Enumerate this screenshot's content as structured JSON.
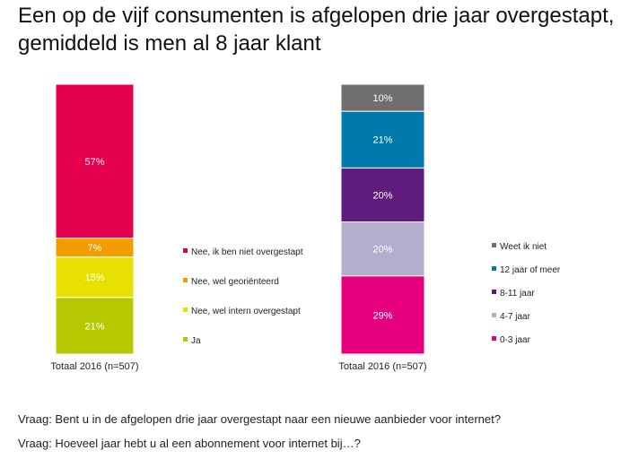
{
  "title": "Een op de vijf consumenten is afgelopen drie jaar overgestapt, gemiddeld is men al 8 jaar klant",
  "questions": [
    "Vraag: Bent u in de afgelopen drie jaar overgestapt naar een nieuwe aanbieder voor internet?",
    "Vraag: Hoeveel jaar hebt u al een abonnement voor internet bij…?"
  ],
  "chart_data": [
    {
      "type": "bar",
      "stacked": true,
      "categories": [
        "Totaal 2016 (n=507)"
      ],
      "series": [
        {
          "name": "Ja",
          "values": [
            21
          ],
          "label": "21%",
          "color": "#b5c800"
        },
        {
          "name": "Nee, wel intern overgestapt",
          "values": [
            15
          ],
          "label": "15%",
          "color": "#e8e000"
        },
        {
          "name": "Nee, wel georiënteerd",
          "values": [
            7
          ],
          "label": "7%",
          "color": "#f39c00"
        },
        {
          "name": "Nee, ik ben niet overgestapt",
          "values": [
            57
          ],
          "label": "57%",
          "color": "#e4004f"
        }
      ],
      "legend_order": [
        "Nee, ik ben niet overgestapt",
        "Nee, wel georiënteerd",
        "Nee, wel intern overgestapt",
        "Ja"
      ],
      "ylim": [
        0,
        100
      ]
    },
    {
      "type": "bar",
      "stacked": true,
      "categories": [
        "Totaal 2016 (n=507)"
      ],
      "series": [
        {
          "name": "0-3 jaar",
          "values": [
            29
          ],
          "label": "29%",
          "color": "#e6007e"
        },
        {
          "name": "4-7 jaar",
          "values": [
            20
          ],
          "label": "20%",
          "color": "#b3aece"
        },
        {
          "name": "8-11 jaar",
          "values": [
            20
          ],
          "label": "20%",
          "color": "#5e1c7e"
        },
        {
          "name": "12 jaar of meer",
          "values": [
            21
          ],
          "label": "21%",
          "color": "#0079ad"
        },
        {
          "name": "Weet ik niet",
          "values": [
            10
          ],
          "label": "10%",
          "color": "#6f6f6f"
        }
      ],
      "legend_order": [
        "Weet ik niet",
        "12 jaar of meer",
        "8-11 jaar",
        "4-7 jaar",
        "0-3 jaar"
      ],
      "ylim": [
        0,
        100
      ]
    }
  ]
}
